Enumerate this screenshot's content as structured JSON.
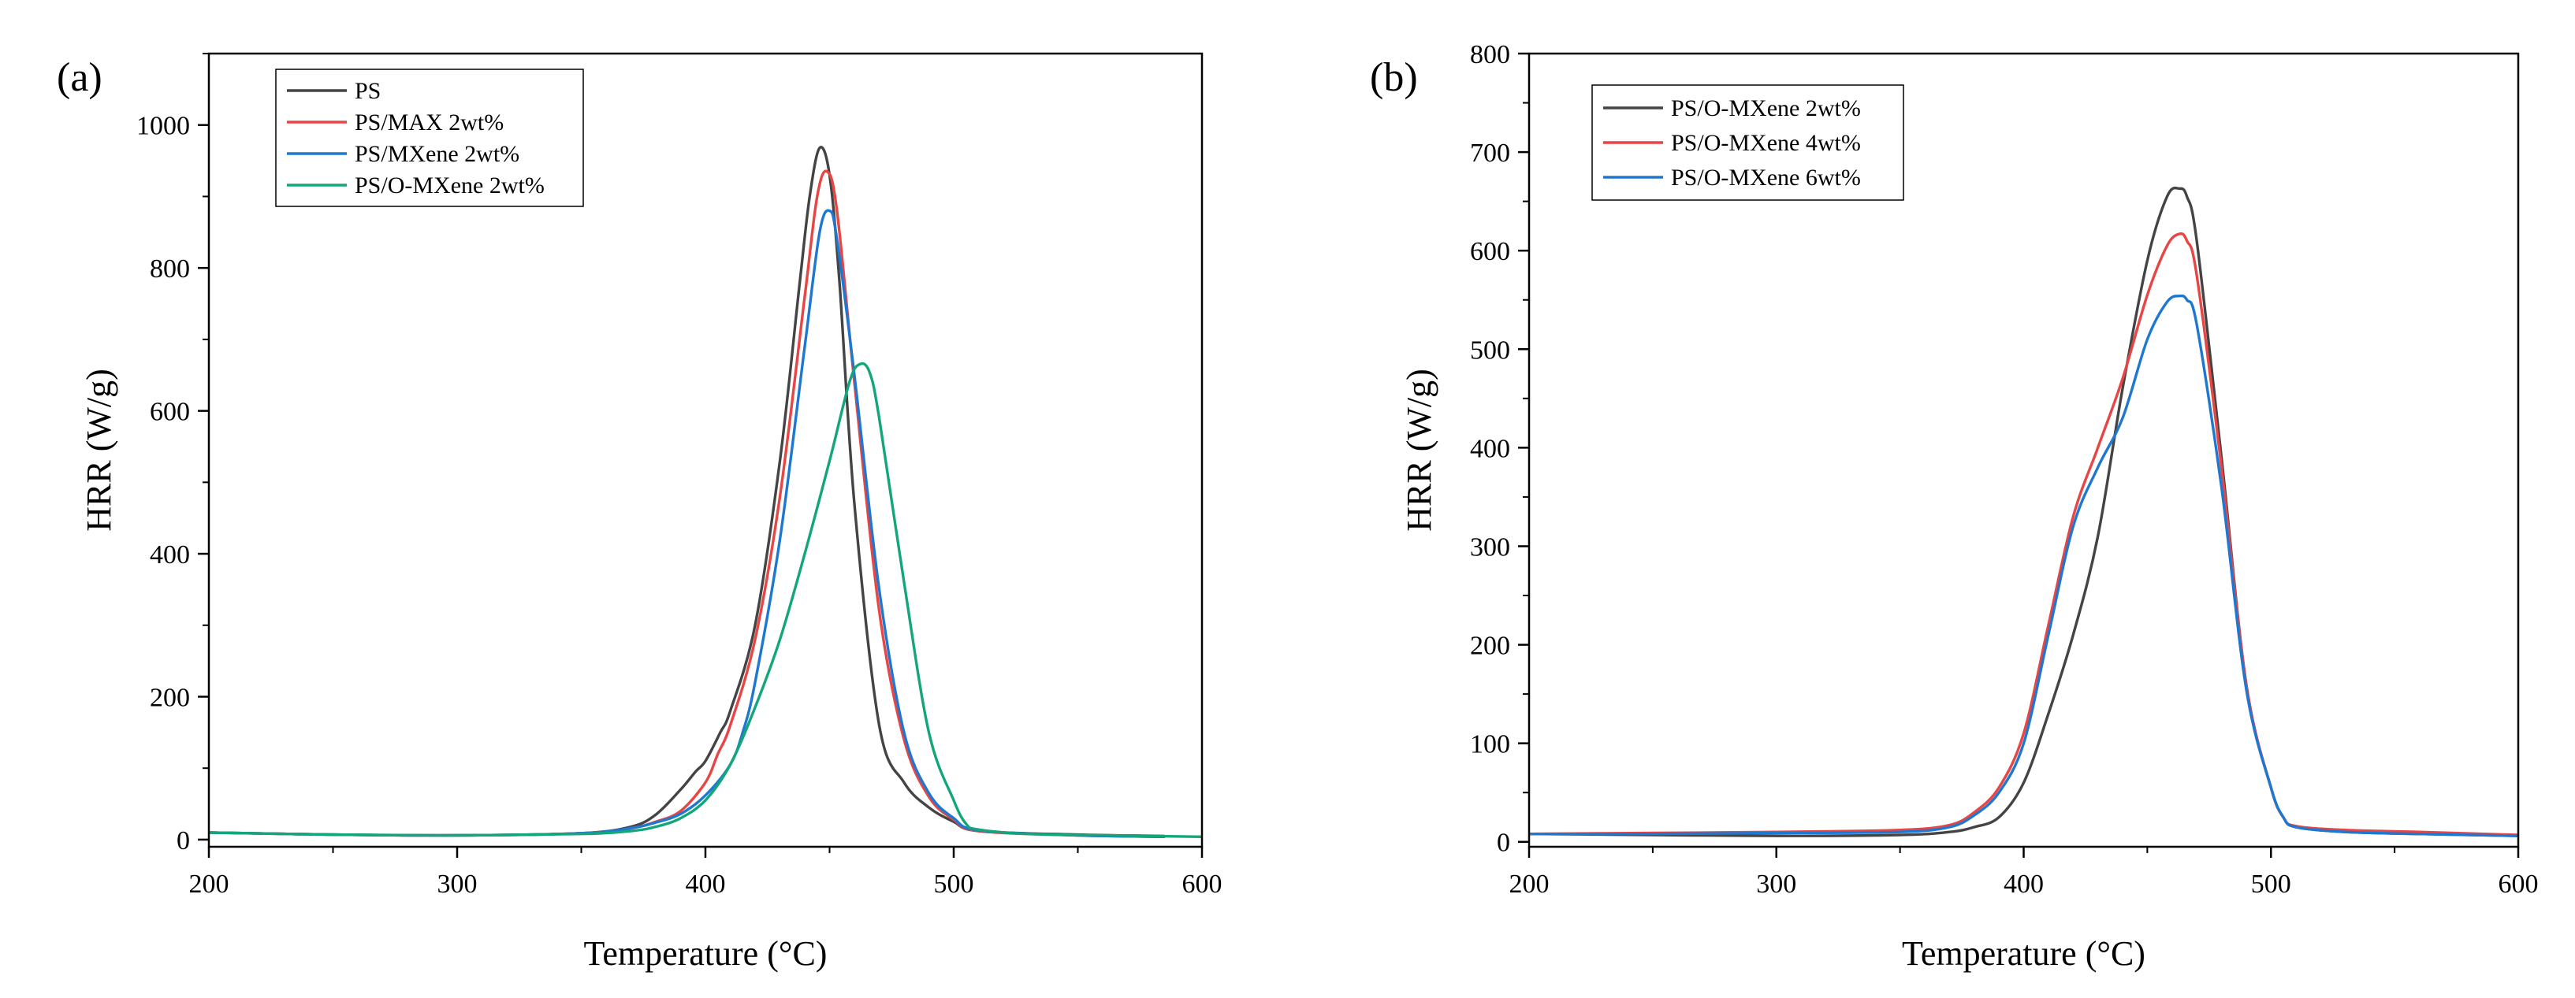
{
  "chart_data": [
    {
      "type": "line",
      "panel_label": "(a)",
      "xlabel": "Temperature (°C)",
      "ylabel": "HRR (W/g)",
      "xlim": [
        200,
        600
      ],
      "ylim": [
        -10,
        1100
      ],
      "xticks": [
        200,
        300,
        400,
        500,
        600
      ],
      "yticks": [
        0,
        200,
        400,
        600,
        800,
        1000
      ],
      "legend_position": "top-left",
      "series": [
        {
          "name": "PS",
          "color": "#444444",
          "x": [
            200,
            250,
            300,
            350,
            370,
            380,
            390,
            396,
            400,
            406,
            410,
            420,
            430,
            438,
            442,
            446,
            450,
            454,
            460,
            470,
            480,
            490,
            500,
            510,
            550,
            585
          ],
          "y": [
            10,
            7,
            6,
            9,
            18,
            35,
            70,
            95,
            110,
            150,
            180,
            300,
            530,
            780,
            900,
            968,
            930,
            780,
            470,
            160,
            80,
            45,
            25,
            12,
            7,
            5
          ]
        },
        {
          "name": "PS/MAX 2wt%",
          "color": "#e84545",
          "x": [
            200,
            250,
            300,
            350,
            370,
            380,
            390,
            400,
            405,
            410,
            420,
            430,
            440,
            445,
            449,
            453,
            460,
            470,
            480,
            490,
            500,
            510,
            550,
            585
          ],
          "y": [
            10,
            7,
            6,
            9,
            16,
            25,
            40,
            80,
            120,
            160,
            280,
            480,
            760,
            900,
            935,
            880,
            640,
            320,
            140,
            60,
            28,
            12,
            6,
            4
          ]
        },
        {
          "name": "PS/MXene 2wt%",
          "color": "#1e78d2",
          "x": [
            200,
            250,
            300,
            350,
            370,
            380,
            390,
            400,
            410,
            415,
            420,
            430,
            440,
            446,
            450,
            453,
            460,
            470,
            480,
            490,
            500,
            510,
            550,
            585
          ],
          "y": [
            10,
            7,
            6,
            9,
            16,
            24,
            36,
            62,
            105,
            150,
            220,
            420,
            690,
            850,
            880,
            840,
            650,
            350,
            150,
            65,
            30,
            13,
            6,
            4
          ]
        },
        {
          "name": "PS/O-MXene 2wt%",
          "color": "#13a67a",
          "x": [
            200,
            250,
            300,
            350,
            370,
            380,
            390,
            400,
            410,
            420,
            430,
            440,
            450,
            458,
            462,
            466,
            470,
            480,
            490,
            500,
            505,
            510,
            530,
            560,
            600
          ],
          "y": [
            10,
            7,
            6,
            8,
            12,
            18,
            30,
            55,
            105,
            185,
            280,
            400,
            530,
            640,
            665,
            655,
            590,
            360,
            150,
            55,
            22,
            14,
            8,
            6,
            4
          ]
        }
      ]
    },
    {
      "type": "line",
      "panel_label": "(b)",
      "xlabel": "Temperature (°C)",
      "ylabel": "HRR (W/g)",
      "xlim": [
        200,
        600
      ],
      "ylim": [
        -5,
        800
      ],
      "xticks": [
        200,
        300,
        400,
        500,
        600
      ],
      "yticks": [
        0,
        100,
        200,
        300,
        400,
        500,
        600,
        700,
        800
      ],
      "legend_position": "top-left",
      "series": [
        {
          "name": "PS/O-MXene 2wt%",
          "color": "#444444",
          "x": [
            200,
            250,
            300,
            350,
            370,
            380,
            390,
            400,
            410,
            420,
            430,
            440,
            450,
            458,
            463,
            466,
            470,
            480,
            490,
            500,
            505,
            510,
            530,
            560,
            600
          ],
          "y": [
            8,
            7,
            6,
            7,
            10,
            15,
            25,
            60,
            130,
            210,
            310,
            460,
            590,
            655,
            663,
            655,
            610,
            390,
            160,
            55,
            25,
            15,
            10,
            8,
            6
          ]
        },
        {
          "name": "PS/O-MXene 4wt%",
          "color": "#e84545",
          "x": [
            200,
            250,
            300,
            350,
            370,
            380,
            390,
            400,
            410,
            420,
            430,
            440,
            450,
            458,
            463,
            466,
            470,
            480,
            490,
            500,
            505,
            510,
            530,
            560,
            600
          ],
          "y": [
            8,
            9,
            10,
            12,
            17,
            30,
            55,
            110,
            220,
            330,
            400,
            470,
            555,
            605,
            617,
            610,
            575,
            380,
            160,
            55,
            25,
            16,
            12,
            10,
            7
          ]
        },
        {
          "name": "PS/O-MXene 6wt%",
          "color": "#1e78d2",
          "x": [
            200,
            250,
            300,
            350,
            370,
            380,
            390,
            400,
            410,
            420,
            430,
            440,
            450,
            458,
            463,
            466,
            470,
            480,
            490,
            500,
            505,
            510,
            530,
            560,
            600
          ],
          "y": [
            8,
            8,
            9,
            10,
            15,
            27,
            50,
            100,
            210,
            320,
            380,
            430,
            510,
            548,
            554,
            550,
            525,
            360,
            155,
            55,
            25,
            15,
            10,
            8,
            6
          ]
        }
      ]
    }
  ]
}
